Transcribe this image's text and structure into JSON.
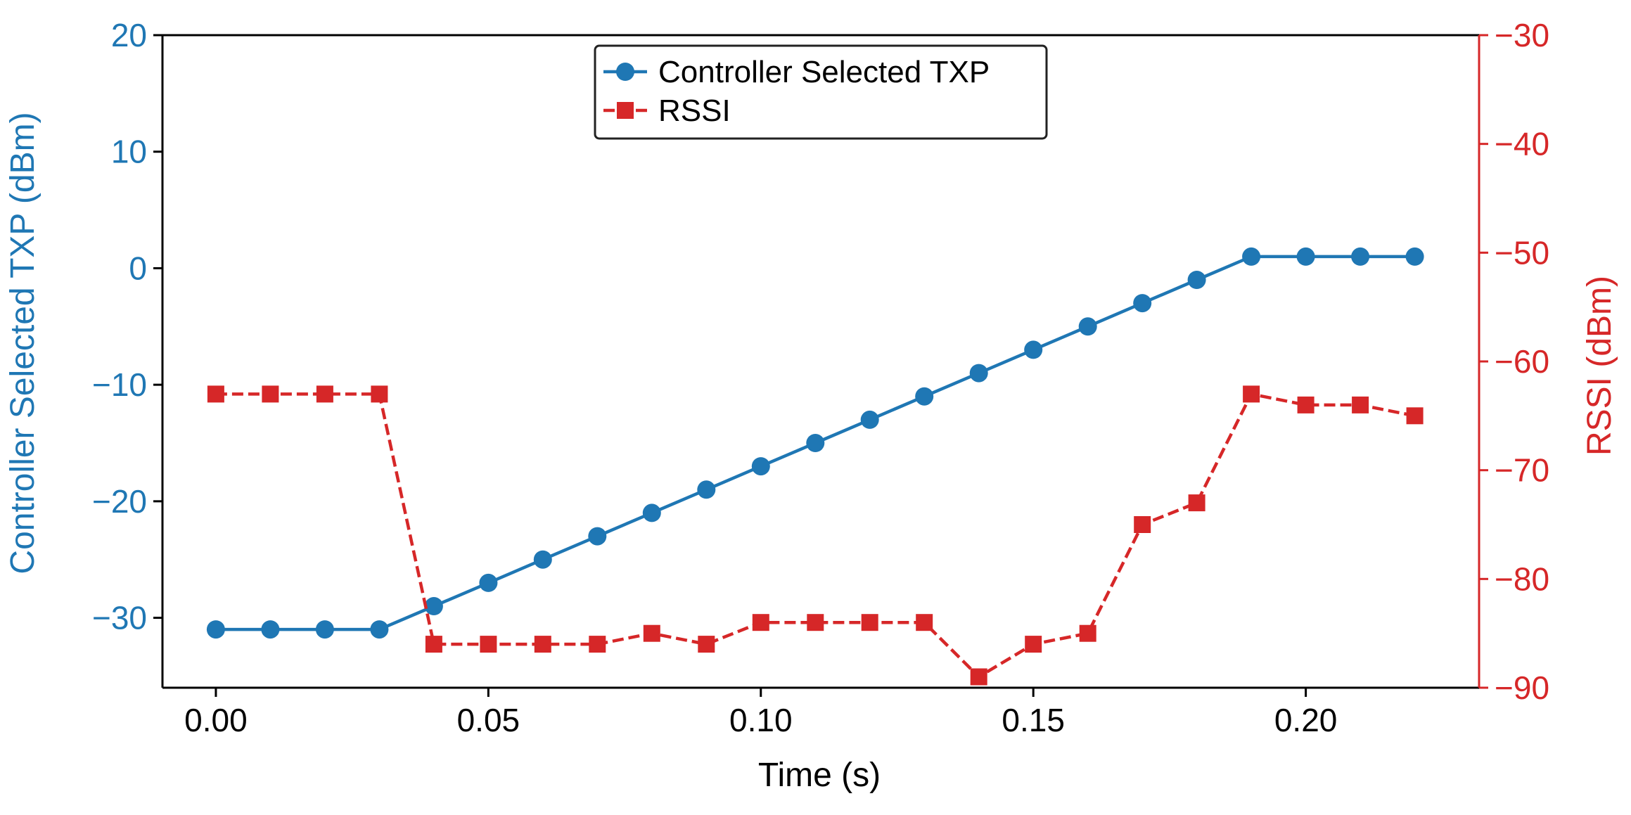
{
  "chart_data": {
    "type": "line",
    "title": "",
    "xlabel": "Time (s)",
    "ylabel": "Controller Selected TXP (dBm)",
    "y2label": "RSSI (dBm)",
    "xlim": [
      -0.0098,
      0.2318
    ],
    "ylim": [
      -36,
      20
    ],
    "y2lim": [
      -90,
      -30
    ],
    "xticks": [
      0.0,
      0.05,
      0.1,
      0.15,
      0.2
    ],
    "xtick_labels": [
      "0.00",
      "0.05",
      "0.10",
      "0.15",
      "0.20"
    ],
    "yticks": [
      20,
      10,
      0,
      -10,
      -20,
      -30
    ],
    "ytick_labels": [
      "20",
      "10",
      "0",
      "−10",
      "−20",
      "−30"
    ],
    "y2ticks": [
      -30,
      -40,
      -50,
      -60,
      -70,
      -80,
      -90
    ],
    "y2tick_labels": [
      "−30",
      "−40",
      "−50",
      "−60",
      "−70",
      "−80",
      "−90"
    ],
    "grid": false,
    "legend_position": "top-center",
    "x": [
      0.0,
      0.01,
      0.02,
      0.03,
      0.04,
      0.05,
      0.06,
      0.07,
      0.08,
      0.09,
      0.1,
      0.11,
      0.12,
      0.13,
      0.14,
      0.15,
      0.16,
      0.17,
      0.18,
      0.19,
      0.2,
      0.21,
      0.22
    ],
    "series": [
      {
        "name": "Controller Selected TXP",
        "axis": "left",
        "color": "#1f77b4",
        "marker": "circle",
        "linestyle": "solid",
        "values": [
          -31,
          -31,
          -31,
          -31,
          -29,
          -27,
          -25,
          -23,
          -21,
          -19,
          -17,
          -15,
          -13,
          -11,
          -9,
          -7,
          -5,
          -3,
          -1,
          1,
          1,
          1,
          1
        ]
      },
      {
        "name": "RSSI",
        "axis": "right",
        "color": "#d62728",
        "marker": "square",
        "linestyle": "dashed",
        "values": [
          -63,
          -63,
          -63,
          -63,
          -86,
          -86,
          -86,
          -86,
          -85,
          -86,
          -84,
          -84,
          -84,
          -84,
          -89,
          -86,
          -85,
          -75,
          -73,
          -63,
          -64,
          -64,
          -65
        ]
      }
    ]
  }
}
